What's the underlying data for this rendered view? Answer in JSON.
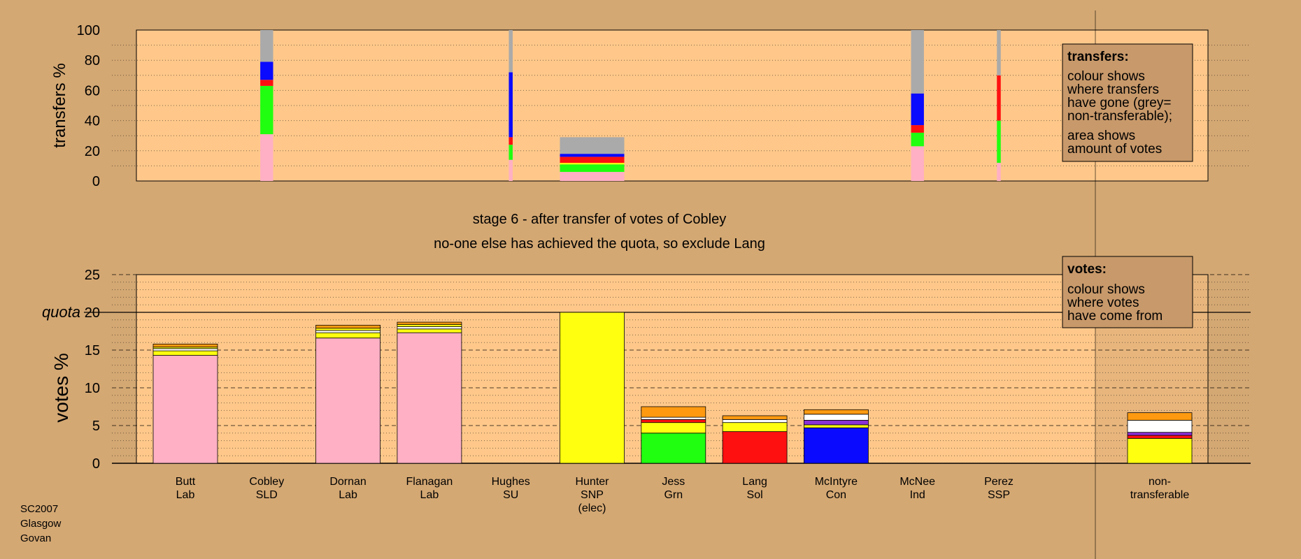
{
  "colors": {
    "background": "#d4a873",
    "plot_bg": "#ffc88a",
    "legend_bg": "#c8996a",
    "parties": {
      "Lab": "#ffb0c4",
      "SLD": "#ff9a10",
      "SU": "#ffffff",
      "SNP": "#ffff10",
      "Grn": "#20ff10",
      "Sol": "#ff1010",
      "Con": "#0a0aff",
      "Ind": "#8a30d8",
      "SSP": "#ff5050",
      "nontransferable": "#aaaaaa"
    }
  },
  "stage": {
    "line1": "stage 6 - after transfer of votes of Cobley",
    "line2": "no-one else has achieved the quota, so exclude Lang"
  },
  "footer": [
    "SC2007",
    "Glasgow",
    "Govan"
  ],
  "legends": {
    "transfers": {
      "title": "transfers:",
      "lines": [
        "colour shows",
        "where transfers",
        "have gone (grey=",
        "non-transferable);",
        "area shows",
        "amount of votes"
      ]
    },
    "votes": {
      "title": "votes:",
      "lines": [
        "colour shows",
        "where votes",
        "have come from"
      ]
    }
  },
  "chart_data": [
    {
      "type": "bar",
      "id": "transfers",
      "ylabel": "transfers %",
      "ylim": [
        0,
        100
      ],
      "yticks": [
        0,
        20,
        40,
        60,
        80,
        100
      ],
      "grid": "dotted every 10",
      "columns": [
        {
          "index": 1,
          "width": 0.2,
          "segments": [
            {
              "from": "Lab",
              "y0": 0,
              "y1": 31
            },
            {
              "from": "Grn",
              "y0": 31,
              "y1": 63
            },
            {
              "from": "Sol",
              "y0": 63,
              "y1": 67
            },
            {
              "from": "Con",
              "y0": 67,
              "y1": 79
            },
            {
              "from": "nontransferable",
              "y0": 79,
              "y1": 100
            }
          ]
        },
        {
          "index": 4,
          "width": 0.06,
          "segments": [
            {
              "from": "Lab",
              "y0": 0,
              "y1": 14
            },
            {
              "from": "Grn",
              "y0": 14,
              "y1": 24
            },
            {
              "from": "Sol",
              "y0": 24,
              "y1": 29
            },
            {
              "from": "Con",
              "y0": 29,
              "y1": 72
            },
            {
              "from": "nontransferable",
              "y0": 72,
              "y1": 100
            }
          ]
        },
        {
          "index": 5,
          "width": 1.0,
          "segments": [
            {
              "from": "Lab",
              "y0": 0,
              "y1": 6
            },
            {
              "from": "Grn",
              "y0": 6,
              "y1": 11
            },
            {
              "from": "SNP",
              "y0": 11,
              "y1": 12
            },
            {
              "from": "Sol",
              "y0": 12,
              "y1": 16
            },
            {
              "from": "Con",
              "y0": 16,
              "y1": 18
            },
            {
              "from": "nontransferable",
              "y0": 18,
              "y1": 29
            }
          ]
        },
        {
          "index": 9,
          "width": 0.2,
          "segments": [
            {
              "from": "Lab",
              "y0": 0,
              "y1": 23
            },
            {
              "from": "Grn",
              "y0": 23,
              "y1": 32
            },
            {
              "from": "Sol",
              "y0": 32,
              "y1": 37
            },
            {
              "from": "Con",
              "y0": 37,
              "y1": 58
            },
            {
              "from": "nontransferable",
              "y0": 58,
              "y1": 100
            }
          ]
        },
        {
          "index": 10,
          "width": 0.06,
          "segments": [
            {
              "from": "Lab",
              "y0": 0,
              "y1": 12
            },
            {
              "from": "Grn",
              "y0": 12,
              "y1": 40
            },
            {
              "from": "Sol",
              "y0": 40,
              "y1": 70
            },
            {
              "from": "nontransferable",
              "y0": 70,
              "y1": 100
            }
          ]
        }
      ]
    },
    {
      "type": "bar",
      "id": "votes",
      "ylabel": "votes %",
      "ylim": [
        0,
        25
      ],
      "yticks": [
        0,
        5,
        10,
        15,
        20,
        25
      ],
      "quota": {
        "label": "quota",
        "value": 20
      },
      "grid": "dashed every 5, dotted every 1",
      "candidates": [
        {
          "name": "Butt",
          "party": "Lab",
          "segments": [
            {
              "from": "Lab",
              "value": 14.3
            },
            {
              "from": "SNP",
              "value": 0.6
            },
            {
              "from": "SU",
              "value": 0.3
            },
            {
              "from": "SNP",
              "value": 0.2
            },
            {
              "from": "SLD",
              "value": 0.4
            }
          ]
        },
        {
          "name": "Cobley",
          "party": "SLD",
          "segments": []
        },
        {
          "name": "Dornan",
          "party": "Lab",
          "segments": [
            {
              "from": "Lab",
              "value": 16.6
            },
            {
              "from": "SNP",
              "value": 0.7
            },
            {
              "from": "SU",
              "value": 0.3
            },
            {
              "from": "SNP",
              "value": 0.3
            },
            {
              "from": "SLD",
              "value": 0.4
            }
          ]
        },
        {
          "name": "Flanagan",
          "party": "Lab",
          "segments": [
            {
              "from": "Lab",
              "value": 17.3
            },
            {
              "from": "SNP",
              "value": 0.5
            },
            {
              "from": "SU",
              "value": 0.3
            },
            {
              "from": "SNP",
              "value": 0.3
            },
            {
              "from": "SLD",
              "value": 0.3
            }
          ]
        },
        {
          "name": "Hughes",
          "party": "SU",
          "segments": []
        },
        {
          "name": "Hunter",
          "party": "SNP",
          "note": "(elec)",
          "segments": [
            {
              "from": "SNP",
              "value": 20.0
            }
          ]
        },
        {
          "name": "Jess",
          "party": "Grn",
          "segments": [
            {
              "from": "Grn",
              "value": 4.0
            },
            {
              "from": "SNP",
              "value": 1.4
            },
            {
              "from": "Sol",
              "value": 0.4
            },
            {
              "from": "SU",
              "value": 0.3
            },
            {
              "from": "SLD",
              "value": 1.4
            }
          ]
        },
        {
          "name": "Lang",
          "party": "Sol",
          "segments": [
            {
              "from": "Sol",
              "value": 4.2
            },
            {
              "from": "SNP",
              "value": 1.2
            },
            {
              "from": "SU",
              "value": 0.4
            },
            {
              "from": "SLD",
              "value": 0.5
            }
          ]
        },
        {
          "name": "McIntyre",
          "party": "Con",
          "segments": [
            {
              "from": "Con",
              "value": 4.7
            },
            {
              "from": "SNP",
              "value": 0.4
            },
            {
              "from": "Ind",
              "value": 0.6
            },
            {
              "from": "SU",
              "value": 0.8
            },
            {
              "from": "SLD",
              "value": 0.6
            }
          ]
        },
        {
          "name": "McNee",
          "party": "Ind",
          "segments": []
        },
        {
          "name": "Perez",
          "party": "SSP",
          "segments": []
        },
        {
          "name": "non-\ntransferable",
          "party": "",
          "segments": [
            {
              "from": "SNP",
              "value": 3.3
            },
            {
              "from": "Sol",
              "value": 0.4
            },
            {
              "from": "Ind",
              "value": 0.4
            },
            {
              "from": "SU",
              "value": 1.6
            },
            {
              "from": "SLD",
              "value": 1.0
            }
          ]
        }
      ]
    }
  ]
}
